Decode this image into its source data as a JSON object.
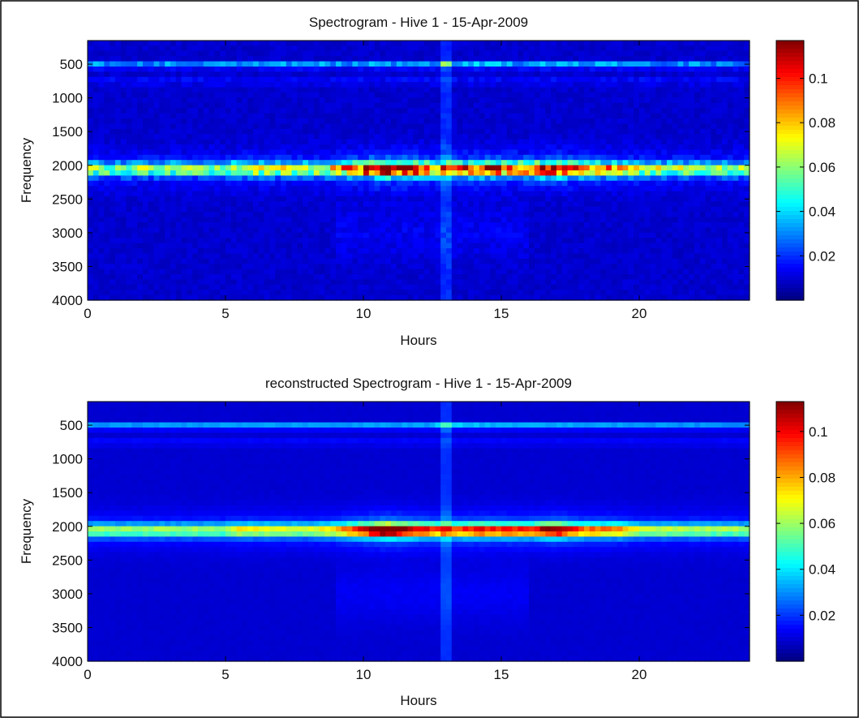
{
  "chart_data": [
    {
      "type": "heatmap",
      "title": "Spectrogram - Hive 1 - 15-Apr-2009",
      "xlabel": "Hours",
      "ylabel": "Frequency",
      "xlim": [
        0,
        24
      ],
      "ylim": [
        4000,
        150
      ],
      "x_ticks": [
        0,
        5,
        10,
        15,
        20
      ],
      "y_ticks": [
        500,
        1000,
        1500,
        2000,
        2500,
        3000,
        3500,
        4000
      ],
      "y_reversed": true,
      "colormap": "jet",
      "colorbar": {
        "range": [
          0.0,
          0.117
        ],
        "ticks": [
          0.02,
          0.04,
          0.06,
          0.08,
          0.1
        ]
      },
      "bands": [
        {
          "frequency": 2060,
          "intensity_by_hour": [
            [
              0,
              0.045
            ],
            [
              5,
              0.045
            ],
            [
              5.4,
              0.055
            ],
            [
              8,
              0.05
            ],
            [
              9,
              0.06
            ],
            [
              10,
              0.085
            ],
            [
              10.8,
              0.112
            ],
            [
              11.5,
              0.095
            ],
            [
              12,
              0.085
            ],
            [
              13,
              0.07
            ],
            [
              14,
              0.08
            ],
            [
              15,
              0.08
            ],
            [
              16,
              0.075
            ],
            [
              17,
              0.1
            ],
            [
              17.5,
              0.08
            ],
            [
              18,
              0.07
            ],
            [
              19.5,
              0.065
            ],
            [
              20,
              0.05
            ],
            [
              24,
              0.045
            ]
          ]
        },
        {
          "frequency": 520,
          "intensity_by_hour": [
            [
              0,
              0.032
            ],
            [
              12.5,
              0.033
            ],
            [
              13,
              0.055
            ],
            [
              13.3,
              0.04
            ],
            [
              15,
              0.035
            ],
            [
              24,
              0.03
            ]
          ]
        }
      ]
    },
    {
      "type": "heatmap",
      "title": "reconstructed Spectrogram - Hive 1 - 15-Apr-2009",
      "xlabel": "Hours",
      "ylabel": "Frequency",
      "xlim": [
        0,
        24
      ],
      "ylim": [
        4000,
        150
      ],
      "x_ticks": [
        0,
        5,
        10,
        15,
        20
      ],
      "y_ticks": [
        500,
        1000,
        1500,
        2000,
        2500,
        3000,
        3500,
        4000
      ],
      "y_reversed": true,
      "colormap": "jet",
      "colorbar": {
        "range": [
          0.0,
          0.113
        ],
        "ticks": [
          0.02,
          0.04,
          0.06,
          0.08,
          0.1
        ]
      },
      "bands": [
        {
          "frequency": 2060,
          "intensity_by_hour": [
            [
              0,
              0.045
            ],
            [
              5,
              0.045
            ],
            [
              5.4,
              0.055
            ],
            [
              8,
              0.05
            ],
            [
              9,
              0.06
            ],
            [
              10,
              0.085
            ],
            [
              10.8,
              0.11
            ],
            [
              11.5,
              0.095
            ],
            [
              12,
              0.085
            ],
            [
              13,
              0.07
            ],
            [
              14,
              0.08
            ],
            [
              15,
              0.08
            ],
            [
              16,
              0.075
            ],
            [
              17,
              0.098
            ],
            [
              17.5,
              0.08
            ],
            [
              18,
              0.07
            ],
            [
              19.5,
              0.065
            ],
            [
              20,
              0.05
            ],
            [
              24,
              0.045
            ]
          ]
        },
        {
          "frequency": 520,
          "intensity_by_hour": [
            [
              0,
              0.032
            ],
            [
              12.5,
              0.033
            ],
            [
              13,
              0.052
            ],
            [
              13.3,
              0.04
            ],
            [
              15,
              0.035
            ],
            [
              24,
              0.03
            ]
          ]
        }
      ]
    }
  ]
}
